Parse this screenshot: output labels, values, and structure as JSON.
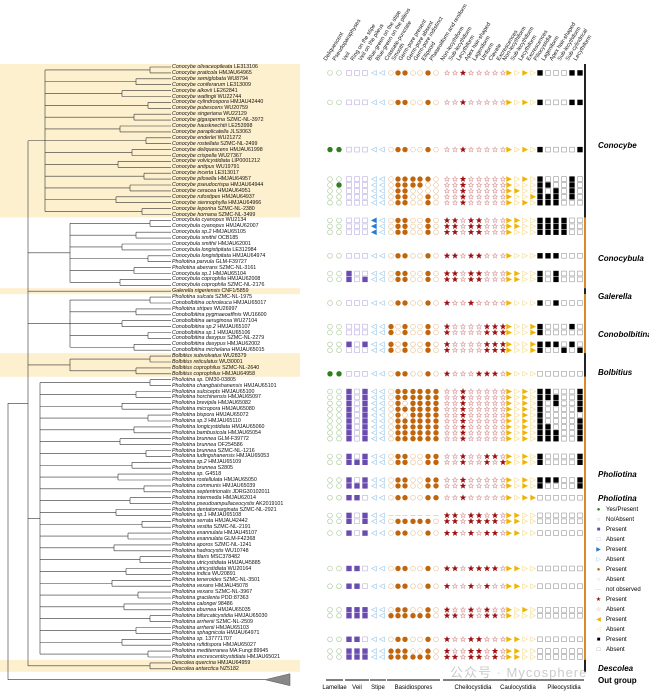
{
  "characters": {
    "groups": [
      {
        "label": "Lamellae",
        "count_cols": [
          "Deliquescent",
          "Pseudoparaphyses"
        ]
      },
      {
        "label": "Veil",
        "count_cols": [
          "Veil",
          "Ring on the stipe",
          "Veil on the pileus"
        ]
      },
      {
        "label": "Stipe",
        "count_cols": [
          "Blue-green on the stipe",
          "Blue-green on the pileus"
        ]
      },
      {
        "label": "Basidiospores",
        "count_cols": [
          "Crassate-punctate",
          "Smooth",
          "Germ-pore present",
          "Germ-pore absent",
          "Germ-pore indistinct",
          "Ellipsoid",
          "Phaseoliform and reniform"
        ]
      },
      {
        "label": "Cheilocystidia",
        "count_cols": [
          "Non-lecythiform",
          "Sub-lecythiform",
          "Lecythiform",
          "Apex hair-shaped",
          "Lageniform",
          "Utriform",
          "Clavate",
          "Excrescences"
        ]
      },
      {
        "label": "Caulocystidia",
        "count_cols": [
          "Non-lecythiform",
          "Sub-lecythiform",
          "Lecythiform",
          "Excrescences"
        ]
      },
      {
        "label": "Pileocystidia",
        "count_cols": [
          "Piliocystidia",
          "Lageniform",
          "Apex hair-shaped",
          "Sub-lecythiform",
          "Sub-cylindrical",
          "Lecythiform"
        ]
      }
    ]
  },
  "colors": {
    "lamellae_present": "#2e7d1f",
    "lamellae_absent": "#a9c99a",
    "veil_present": "#6a4bb0",
    "veil_absent": "#b9aee0",
    "stipe_present": "#2a7ad0",
    "stipe_absent": "#9cc8ea",
    "spore_present": "#c0650c",
    "spore_absent": "#e8c49a",
    "cheilo_present": "#a01010",
    "cheilo_absent": "#d89a9a",
    "caulo_present": "#f0b400",
    "caulo_absent": "#f5dc90",
    "pileo_present": "#000000",
    "pileo_absent": "#999999",
    "highlight": "#fbe3a6",
    "bar_orange": "#d98a2b",
    "bar_black": "#222222"
  },
  "clades": [
    {
      "label": "Conocybe",
      "bar": "black",
      "highlight": true,
      "taxa": [
        [
          "Conocybe olivaceopileata",
          "LE313106"
        ],
        [
          "Conocybe praticola",
          "HMJAU64965",
          "00|000|00|0110010|00100000|1010|100011"
        ],
        [
          "Conocybe semiglobata",
          "WU8794"
        ],
        [
          "Conocybe coniferarum",
          "LE313009"
        ],
        [
          "Conocybe alkovii",
          "LE262841"
        ],
        [
          "Conocybe watlingii",
          "WU22744"
        ],
        [
          "Conocybe cylindrospora",
          "HMJAU42440",
          "00|000|00|0110010|00100000|1010|100011"
        ],
        [
          "Conocybe pubescens",
          "WU20759"
        ],
        [
          "Conocybe singeriana",
          "WU22129"
        ],
        [
          "Conocybe gigasperma",
          "SZMC-NL-3972"
        ],
        [
          "Conocybe hausknechtii",
          "LE253998"
        ],
        [
          "Conocybe paraplicatella",
          "JLS3063"
        ],
        [
          "Conocybe enderlei",
          "WU21272"
        ],
        [
          "Conocybe rostellata",
          "SZMC-NL-2499"
        ],
        [
          "Conocybe deliquescens",
          "HMJAU61998",
          "11|000|00|0110010|00100000|1010|100001"
        ],
        [
          "Conocybe crispella",
          "WU27367"
        ],
        [
          "Conocybe volvicystidiata",
          "LIP0001212"
        ],
        [
          "Conocybe antipus",
          "WU19791"
        ],
        [
          "Conocybe incerta",
          "LE313017"
        ],
        [
          "Conocybe pilosella",
          "HMJAU64957",
          "00|000|00|0111110|00100000|1010|100010"
        ],
        [
          "Conocybe pseudocrispa",
          "HMJAU64944",
          "01|000|00|0111100|00100000|1000|110010"
        ],
        [
          "Conocybe ceracea",
          "HMJAU64951",
          "00|000|00|0110000|00100000|1100|101010"
        ],
        [
          "Conocybe rufostipes",
          "HMJAU64937",
          "00|000|00|0110010|00100000|1001|111010"
        ],
        [
          "Conocybe siennophylla",
          "HMJAU64966",
          "00|000|00|0110010|00100000|1010|111000"
        ],
        [
          "Conocybe leporina",
          "SZMC-NL-2380"
        ],
        [
          "Conocybe hornana",
          "SZMC-NL-3499"
        ]
      ]
    },
    {
      "label": "Conocybula",
      "bar": "orange",
      "highlight": false,
      "taxa": [
        [
          "Conocybula cyanopus",
          "WU2134",
          "00|000|10|0110010|11011000|1100|111100"
        ],
        [
          "Conocybula cyanopus",
          "HMJAU62007",
          "00|000|10|0110010|11011000|1100|111100"
        ],
        [
          "Conocybula sp.2",
          "HMJAU65105",
          "00|000|10|0110010|11011000|1000|111100"
        ],
        [
          "Conocybula smithii",
          "OCB185"
        ],
        [
          "Conocybula smithii",
          "HMJAU62001"
        ],
        [
          "Conocybula longistipitata",
          "LE312984"
        ],
        [
          "Conocybula longistipitata",
          "HMJAU64974",
          "00|000|00|0110010|11011000|1000|111000"
        ],
        [
          "Pholiotina parvula",
          "GLM-F39727"
        ],
        [
          "Pholiotina aberrans",
          "SZMC-NL-3161"
        ],
        [
          "Conocybula sp.1",
          "HMJAU65104",
          "00|100|00|0110010|11011000|1100|101000"
        ],
        [
          "Conocybula coprophila",
          "HMJAU62008",
          "00|101|00|0110010|11011000|1100|101000"
        ],
        [
          "Conocybula coprophila",
          "SZMC-NL-2176"
        ]
      ]
    },
    {
      "label": "Galerella",
      "bar": "black",
      "highlight": true,
      "taxa": [
        [
          "Galerella nigeriensis",
          "CNF1/5859"
        ]
      ]
    },
    {
      "label": "Conobolbitina",
      "bar": "orange",
      "highlight": false,
      "taxa": [
        [
          "Pholiotina sulcata",
          "SZMC-NL-1975"
        ],
        [
          "Conobolbitina ochroleuca",
          "HMJAU65017",
          "00|000|00|0110010|10010000|1000|101000"
        ],
        [
          "Pholiotina stripes",
          "WU26997"
        ],
        [
          "Conobolbitina pygmaeoaffinis",
          "WU16600"
        ],
        [
          "Conobolbitina aeruginosa",
          "WU27104"
        ],
        [
          "Conobolbitina sp.2",
          "HMJAU65107",
          "00|000|00|1010010|10000111|1001|100010"
        ],
        [
          "Conobolbitina sp.1",
          "HMJAU65106",
          "00|000|00|1010010|10000111|1001|100000"
        ],
        [
          "Conobolbitina dasypus",
          "SZMC-NL-2279"
        ],
        [
          "Conobolbitina dasypus",
          "HMJAU62002",
          "00|101|00|1010010|10000111|1001|111010"
        ],
        [
          "Conobolbitina michelana",
          "HMJAU65015",
          "00|000|00|1010010|10000111|1001|100101"
        ]
      ]
    },
    {
      "label": "Bolbitius",
      "bar": "black",
      "highlight": true,
      "taxa": [
        [
          "Bolbitius subvolvatus",
          "WU28379"
        ],
        [
          "Bolbitius reticulatus",
          "WU30001"
        ],
        [
          "Bolbitius coprophilus",
          "SZMC-NL-2640"
        ],
        [
          "Bolbitius coprophilus",
          "HMJAU64958",
          "11|000|00|0110010|10001110|1000|000000"
        ]
      ]
    },
    {
      "label": "Pholiotina",
      "bar": "orange",
      "highlight": false,
      "taxa": [
        [
          "Pholiotina sp.",
          "DM30-03805"
        ],
        [
          "Pholiotina changbaishanensis",
          "HMJAU65101"
        ],
        [
          "Pholiotina sulcicepts",
          "HMJAU65100",
          "00|101|00|0111111|00100000|1010|110001"
        ],
        [
          "Pholiotina horchinensis",
          "HMJAU65097",
          "00|101|00|0111111|00100000|1010|111001"
        ],
        [
          "Pholiotina brevipila",
          "HMJAU65082",
          "00|101|00|0101111|00100000|1010|101001"
        ],
        [
          "Pholiotina micropora",
          "HMJAU65080",
          "00|101|00|0111111|00100000|1010|100001"
        ],
        [
          "Pholiotina bispora",
          "HMJAU65072",
          "00|101|00|0101111|00100000|1010|100000"
        ],
        [
          "Pholiotina sp.3",
          "HMJAU65110",
          "00|101|00|0111111|00100000|1010|100001"
        ],
        [
          "Pholiotina longicystidiata",
          "HMJAU65060",
          "00|101|00|0111111|00100000|1010|110001"
        ],
        [
          "Pholiotina bambusicola",
          "HMJAU65054",
          "00|101|00|0111111|00100000|1010|111001"
        ],
        [
          "Pholiotina brunnea",
          "GLM-F39772",
          "00|101|00|0111111|00100000|1010|111001"
        ],
        [
          "Pholiotina brunnea",
          "OF254586"
        ],
        [
          "Pholiotina brunnea",
          "SZMC-NL-1216"
        ],
        [
          "Pholiotina ludingshanensis",
          "HMJAU65053",
          "00|101|00|0110011|00100110|1010|100001"
        ],
        [
          "Pholiotina sp.2",
          "HMJAU65109",
          "00|111|00|0110011|00100101|1010|100001"
        ],
        [
          "Pholiotina brunnea",
          "S2805"
        ],
        [
          "Pholiotina sp.",
          "G4518"
        ],
        [
          "Pholiotina rostellulata",
          "HMJAU65050",
          "00|101|00|0110011|00100000|1010|111001"
        ],
        [
          "Pholiotina communis",
          "HMJAU65039",
          "00|111|00|0110011|00100000|1010|100001"
        ],
        [
          "Pholiotina septentrionalis",
          "JDRG30102011"
        ],
        [
          "Pholiotina intermedia",
          "HMJAU62014",
          "00|110|00|0110011|00100000|1011|000000"
        ],
        [
          "Pholiotina pseudoampullaceocystis",
          "AK2019101"
        ],
        [
          "Pholiotina dentatomarginata",
          "SZMC-NL-2921"
        ],
        [
          "Pholiotina sp.1",
          "HMJAU65108",
          "00|101|00|-------|11011010|1100|000000"
        ],
        [
          "Pholiotina serrata",
          "HMJAU42442",
          "00|101|00|0111110|11011110|1100|000000"
        ],
        [
          "Pholiotina vestita",
          "SZMC-NL-2191"
        ],
        [
          "Pholiotina exannulata",
          "HMJAU45107",
          "00|101|00|0110010|11010110|1100|000000"
        ],
        [
          "Pholiotina exannulata",
          "GLM-F42368"
        ],
        [
          "Pholiotina aporos",
          "SZMC-NL-1241"
        ],
        [
          "Pholiotina hadrocystis",
          "WU10748"
        ],
        [
          "Pholiotina filaris",
          "MSC378482"
        ],
        [
          "Pholiotina utricystidiata",
          "HMJAU45885"
        ],
        [
          "Pholiotina utricystidiata",
          "WU20164",
          "00|110|00|0110010|11011110|1100|000000"
        ],
        [
          "Pholiotina indica",
          "WU20891"
        ],
        [
          "Pholiotina teneroides",
          "SZMC-NL-3501"
        ],
        [
          "Pholiotina vexans",
          "HMJAU45078",
          "00|110|00|0110010|10010100|1100|000000"
        ],
        [
          "Pholiotina vexans",
          "SZMC-NL-3967"
        ],
        [
          "Pholiotina gracilenta",
          "PDD:87363"
        ],
        [
          "Pholiotina calongei",
          "98486"
        ],
        [
          "Pholiotina eburnea",
          "HMJAU65035",
          "00|111|00|0110010|10010100|1010|000000"
        ],
        [
          "Pholiotina bifurcaticystidia",
          "HMJAU65030",
          "00|111|00|1111110|11010110|1000|000000"
        ],
        [
          "Pholiotina arrhenii",
          "SZMC-NL-2509"
        ],
        [
          "Pholiotina arrhenii",
          "HMJAU65103"
        ],
        [
          "Pholiotina sphagnicola",
          "HMJAU64971"
        ],
        [
          "Pholiotina sp.",
          "137771707",
          "00|110|00|0110010|10011000|1100|000000"
        ],
        [
          "Pholiotina rufidispora",
          "HMJAU65027"
        ],
        [
          "Pholiotina mediterranea",
          "MA:Fungi:89945",
          "00|111|00|1110010|10011010|1100|000000"
        ],
        [
          "Pholiotina excrescenticystidiata",
          "HMJAU65021",
          "00|111|00|1111110|11011010|1100|000000"
        ]
      ]
    },
    {
      "label": "Descolea",
      "bar": "black",
      "highlight": true,
      "taxa": [
        [
          "Descolea quercina",
          "HMJAU64959"
        ],
        [
          "Descolea antarctica",
          "NZ5182"
        ]
      ]
    }
  ],
  "outgroup": {
    "label": "Out group"
  },
  "legend": {
    "clade_label": "Pholiotina",
    "items": [
      {
        "symbol": "circle-filled",
        "color": "#2e7d1f",
        "label": "Yes/Present"
      },
      {
        "symbol": "circle-open",
        "color": "#a9c99a",
        "label": "No/Absent"
      },
      {
        "symbol": "square-filled",
        "color": "#6a4bb0",
        "label": "Present"
      },
      {
        "symbol": "square-open",
        "color": "#b9aee0",
        "label": "Absent"
      },
      {
        "symbol": "triangle-filled",
        "color": "#2a7ad0",
        "label": "Present"
      },
      {
        "symbol": "triangle-open",
        "color": "#9cc8ea",
        "label": "Absent"
      },
      {
        "symbol": "circle-filled",
        "color": "#c0650c",
        "label": "Present"
      },
      {
        "symbol": "circle-open",
        "color": "#e8c49a",
        "label": "Absent"
      },
      {
        "symbol": "dash",
        "color": "#e8c49a",
        "label": "not observed"
      },
      {
        "symbol": "star-filled",
        "color": "#a01010",
        "label": "Present"
      },
      {
        "symbol": "star-open",
        "color": "#d89a9a",
        "label": "Absent"
      },
      {
        "symbol": "tri-left-filled",
        "color": "#f0b400",
        "label": "Present"
      },
      {
        "symbol": "tri-left-open",
        "color": "#f5dc90",
        "label": "Absent"
      },
      {
        "symbol": "square-filled",
        "color": "#000000",
        "label": "Present"
      },
      {
        "symbol": "square-open",
        "color": "#999999",
        "label": "Absent"
      }
    ]
  },
  "watermark": "公众号 · Mycosphere"
}
